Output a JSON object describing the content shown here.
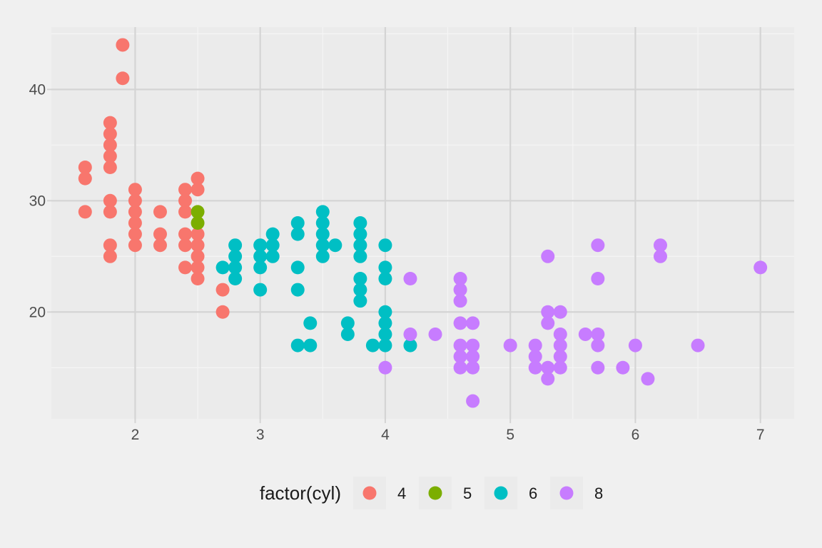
{
  "chart_data": {
    "type": "scatter",
    "title": "",
    "xlabel": "",
    "ylabel": "",
    "xlim": [
      1.33,
      7.27
    ],
    "ylim": [
      10.4,
      45.6
    ],
    "x_ticks": [
      2,
      3,
      4,
      5,
      6,
      7
    ],
    "y_ticks": [
      20,
      30,
      40
    ],
    "grid": true,
    "legend": {
      "title": "factor(cyl)",
      "position": "bottom"
    },
    "series": [
      {
        "name": "4",
        "color": "#F8766D",
        "points": [
          [
            1.6,
            33
          ],
          [
            1.6,
            32
          ],
          [
            1.6,
            29
          ],
          [
            1.8,
            37
          ],
          [
            1.8,
            36
          ],
          [
            1.8,
            35
          ],
          [
            1.8,
            34
          ],
          [
            1.8,
            33
          ],
          [
            1.8,
            30
          ],
          [
            1.8,
            29
          ],
          [
            1.8,
            26
          ],
          [
            1.8,
            25
          ],
          [
            1.9,
            44
          ],
          [
            1.9,
            41
          ],
          [
            2.0,
            31
          ],
          [
            2.0,
            30
          ],
          [
            2.0,
            29
          ],
          [
            2.0,
            28
          ],
          [
            2.0,
            27
          ],
          [
            2.0,
            26
          ],
          [
            2.2,
            29
          ],
          [
            2.2,
            27
          ],
          [
            2.2,
            26
          ],
          [
            2.4,
            31
          ],
          [
            2.4,
            30
          ],
          [
            2.4,
            29
          ],
          [
            2.4,
            27
          ],
          [
            2.4,
            26
          ],
          [
            2.4,
            24
          ],
          [
            2.5,
            32
          ],
          [
            2.5,
            31
          ],
          [
            2.5,
            27
          ],
          [
            2.5,
            26
          ],
          [
            2.5,
            25
          ],
          [
            2.5,
            24
          ],
          [
            2.5,
            23
          ],
          [
            2.7,
            22
          ],
          [
            2.7,
            20
          ]
        ]
      },
      {
        "name": "5",
        "color": "#7CAE00",
        "points": [
          [
            2.5,
            29
          ],
          [
            2.5,
            28
          ]
        ]
      },
      {
        "name": "6",
        "color": "#00BFC4",
        "points": [
          [
            2.7,
            24
          ],
          [
            2.8,
            26
          ],
          [
            2.8,
            25
          ],
          [
            2.8,
            24
          ],
          [
            2.8,
            23
          ],
          [
            3.0,
            26
          ],
          [
            3.0,
            25
          ],
          [
            3.0,
            24
          ],
          [
            3.0,
            22
          ],
          [
            3.1,
            27
          ],
          [
            3.1,
            26
          ],
          [
            3.1,
            25
          ],
          [
            3.3,
            28
          ],
          [
            3.3,
            27
          ],
          [
            3.3,
            24
          ],
          [
            3.3,
            22
          ],
          [
            3.3,
            17
          ],
          [
            3.4,
            19
          ],
          [
            3.4,
            17
          ],
          [
            3.5,
            29
          ],
          [
            3.5,
            28
          ],
          [
            3.5,
            27
          ],
          [
            3.5,
            26
          ],
          [
            3.5,
            25
          ],
          [
            3.6,
            26
          ],
          [
            3.7,
            19
          ],
          [
            3.7,
            18
          ],
          [
            3.8,
            28
          ],
          [
            3.8,
            27
          ],
          [
            3.8,
            26
          ],
          [
            3.8,
            25
          ],
          [
            3.8,
            23
          ],
          [
            3.8,
            22
          ],
          [
            3.8,
            21
          ],
          [
            3.9,
            17
          ],
          [
            4.0,
            26
          ],
          [
            4.0,
            24
          ],
          [
            4.0,
            23
          ],
          [
            4.0,
            20
          ],
          [
            4.0,
            19
          ],
          [
            4.0,
            18
          ],
          [
            4.0,
            17
          ],
          [
            4.2,
            17
          ]
        ]
      },
      {
        "name": "8",
        "color": "#C77CFF",
        "points": [
          [
            4.0,
            15
          ],
          [
            4.2,
            23
          ],
          [
            4.2,
            18
          ],
          [
            4.4,
            18
          ],
          [
            4.6,
            23
          ],
          [
            4.6,
            22
          ],
          [
            4.6,
            21
          ],
          [
            4.6,
            19
          ],
          [
            4.6,
            17
          ],
          [
            4.6,
            16
          ],
          [
            4.6,
            15
          ],
          [
            4.7,
            19
          ],
          [
            4.7,
            17
          ],
          [
            4.7,
            16
          ],
          [
            4.7,
            15
          ],
          [
            4.7,
            12
          ],
          [
            5.0,
            17
          ],
          [
            5.2,
            17
          ],
          [
            5.2,
            16
          ],
          [
            5.2,
            15
          ],
          [
            5.3,
            25
          ],
          [
            5.3,
            20
          ],
          [
            5.3,
            19
          ],
          [
            5.3,
            15
          ],
          [
            5.3,
            14
          ],
          [
            5.4,
            20
          ],
          [
            5.4,
            18
          ],
          [
            5.4,
            17
          ],
          [
            5.4,
            16
          ],
          [
            5.4,
            15
          ],
          [
            5.6,
            18
          ],
          [
            5.7,
            26
          ],
          [
            5.7,
            23
          ],
          [
            5.7,
            18
          ],
          [
            5.7,
            17
          ],
          [
            5.7,
            15
          ],
          [
            5.9,
            15
          ],
          [
            6.0,
            17
          ],
          [
            6.1,
            14
          ],
          [
            6.2,
            26
          ],
          [
            6.2,
            25
          ],
          [
            6.5,
            17
          ],
          [
            7.0,
            24
          ]
        ]
      }
    ]
  }
}
